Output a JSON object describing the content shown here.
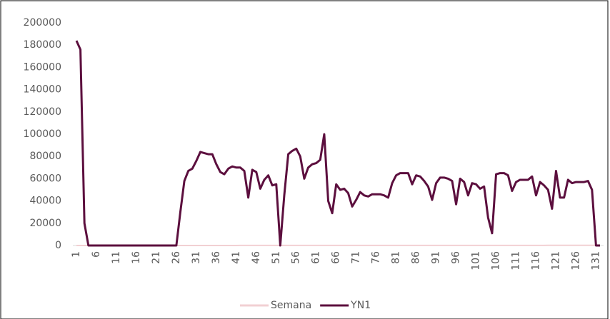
{
  "chart_data": {
    "type": "line",
    "categories": [
      "1",
      null,
      null,
      null,
      null,
      "6",
      null,
      null,
      null,
      null,
      "11",
      null,
      null,
      null,
      null,
      "16",
      null,
      null,
      null,
      null,
      "21",
      null,
      null,
      null,
      null,
      "26",
      null,
      null,
      null,
      null,
      "31",
      null,
      null,
      null,
      null,
      "36",
      null,
      null,
      null,
      null,
      "41",
      null,
      null,
      null,
      null,
      "46",
      null,
      null,
      null,
      null,
      "51",
      null,
      null,
      null,
      null,
      "56",
      null,
      null,
      null,
      null,
      "61",
      null,
      null,
      null,
      null,
      "66",
      null,
      null,
      null,
      null,
      "71",
      null,
      null,
      null,
      null,
      "76",
      null,
      null,
      null,
      null,
      "81",
      null,
      null,
      null,
      null,
      "86",
      null,
      null,
      null,
      null,
      "91",
      null,
      null,
      null,
      null,
      "96",
      null,
      null,
      null,
      null,
      "101",
      null,
      null,
      null,
      null,
      "106",
      null,
      null,
      null,
      null,
      "111",
      null,
      null,
      null,
      null,
      "116",
      null,
      null,
      null,
      null,
      "121",
      null,
      null,
      null,
      null,
      "126",
      null,
      null,
      null,
      null,
      "131",
      null
    ],
    "series": [
      {
        "name": "Semana",
        "color": "#f2d0d3",
        "values": [
          1,
          2,
          3,
          4,
          5,
          6,
          7,
          8,
          9,
          10,
          11,
          12,
          13,
          14,
          15,
          16,
          17,
          18,
          19,
          20,
          21,
          22,
          23,
          24,
          25,
          26,
          27,
          28,
          29,
          30,
          31,
          32,
          33,
          34,
          35,
          36,
          37,
          38,
          39,
          40,
          41,
          42,
          43,
          44,
          45,
          46,
          47,
          48,
          49,
          50,
          51,
          52,
          53,
          54,
          55,
          56,
          57,
          58,
          59,
          60,
          61,
          62,
          63,
          64,
          65,
          66,
          67,
          68,
          69,
          70,
          71,
          72,
          73,
          74,
          75,
          76,
          77,
          78,
          79,
          80,
          81,
          82,
          83,
          84,
          85,
          86,
          87,
          88,
          89,
          90,
          91,
          92,
          93,
          94,
          95,
          96,
          97,
          98,
          99,
          100,
          101,
          102,
          103,
          104,
          105,
          106,
          107,
          108,
          109,
          110,
          111,
          112,
          113,
          114,
          115,
          116,
          117,
          118,
          119,
          120,
          121,
          122,
          123,
          124,
          125,
          126,
          127,
          128,
          129,
          130,
          131,
          132
        ]
      },
      {
        "name": "YN1",
        "color": "#5c0f3e",
        "values": [
          184000,
          176000,
          20000,
          0,
          0,
          0,
          0,
          0,
          0,
          0,
          0,
          0,
          0,
          0,
          0,
          0,
          0,
          0,
          0,
          0,
          0,
          0,
          0,
          0,
          0,
          0,
          30000,
          58000,
          67000,
          69000,
          76000,
          84000,
          83000,
          82000,
          82000,
          73000,
          66000,
          64000,
          69000,
          71000,
          70000,
          70000,
          67000,
          43000,
          68000,
          66000,
          51000,
          59000,
          63000,
          54000,
          55000,
          0,
          45000,
          82000,
          85000,
          87000,
          80000,
          60000,
          70000,
          73000,
          74000,
          77000,
          100000,
          40000,
          29000,
          55000,
          50000,
          51000,
          47000,
          35000,
          41000,
          48000,
          45000,
          44000,
          46000,
          46000,
          46000,
          45000,
          43000,
          56000,
          63000,
          65000,
          65000,
          65000,
          55000,
          63000,
          62000,
          58000,
          53000,
          41000,
          56000,
          61000,
          61000,
          60000,
          58000,
          37000,
          60000,
          57000,
          45000,
          56000,
          55000,
          51000,
          53000,
          25000,
          11000,
          64000,
          65000,
          65000,
          63000,
          49000,
          57000,
          59000,
          59000,
          59000,
          62000,
          45000,
          57000,
          54000,
          50000,
          33000,
          67000,
          43000,
          43000,
          59000,
          56000,
          57000,
          57000,
          57000,
          58000,
          50000,
          0,
          0
        ]
      }
    ],
    "ylim": [
      0,
      200000
    ],
    "yticks": [
      0,
      20000,
      40000,
      60000,
      80000,
      100000,
      120000,
      140000,
      160000,
      180000,
      200000
    ]
  }
}
